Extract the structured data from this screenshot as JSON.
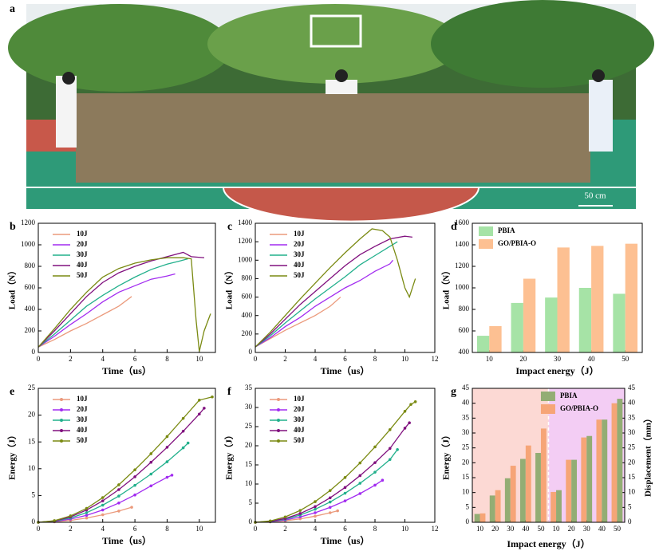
{
  "photo": {
    "label": "a",
    "scale_bar": "50 cm"
  },
  "chart_data": [
    {
      "type": "line",
      "label": "b",
      "x_label": "Time（us）",
      "y_label": "Load（N）",
      "xlim": [
        0,
        11
      ],
      "xticks": [
        0,
        2,
        4,
        6,
        8,
        10
      ],
      "ylim": [
        0,
        1200
      ],
      "yticks": [
        0,
        200,
        400,
        600,
        800,
        1000,
        1200
      ],
      "series": [
        {
          "name": "10J",
          "color": "#eb9a7c",
          "x": [
            0,
            1,
            2,
            3,
            4,
            5,
            5.8
          ],
          "values": [
            50,
            120,
            200,
            270,
            350,
            430,
            520
          ]
        },
        {
          "name": "20J",
          "color": "#a22cf0",
          "x": [
            0,
            1,
            2,
            3,
            4,
            5,
            6,
            7,
            8,
            8.5
          ],
          "values": [
            50,
            150,
            260,
            360,
            470,
            560,
            620,
            680,
            710,
            730
          ]
        },
        {
          "name": "30J",
          "color": "#22b08c",
          "x": [
            0,
            1,
            2,
            3,
            4,
            5,
            6,
            7,
            8,
            8.8,
            9.3
          ],
          "values": [
            50,
            170,
            300,
            430,
            530,
            620,
            700,
            770,
            820,
            850,
            870
          ]
        },
        {
          "name": "40J",
          "color": "#80107e",
          "x": [
            0,
            1,
            2,
            3,
            4,
            5,
            6,
            7,
            8,
            9,
            9.5,
            10.3
          ],
          "values": [
            50,
            200,
            360,
            520,
            650,
            740,
            800,
            850,
            890,
            930,
            890,
            880
          ]
        },
        {
          "name": "50J",
          "color": "#7a8a12",
          "x": [
            0,
            1,
            2,
            3,
            4,
            5,
            6,
            7,
            8,
            9,
            9.5,
            9.8,
            10,
            10.3,
            10.7
          ],
          "values": [
            50,
            220,
            400,
            560,
            700,
            780,
            830,
            860,
            880,
            880,
            870,
            300,
            10,
            200,
            360
          ]
        }
      ]
    },
    {
      "type": "line",
      "label": "c",
      "x_label": "Time（us）",
      "y_label": "Load（N）",
      "xlim": [
        0,
        12
      ],
      "xticks": [
        0,
        2,
        4,
        6,
        8,
        10,
        12
      ],
      "ylim": [
        0,
        1400
      ],
      "yticks": [
        0,
        200,
        400,
        600,
        800,
        1000,
        1200,
        1400
      ],
      "series": [
        {
          "name": "10J",
          "color": "#eb9a7c",
          "x": [
            0,
            1,
            2,
            3,
            4,
            5,
            5.7
          ],
          "values": [
            60,
            150,
            240,
            320,
            400,
            500,
            600
          ]
        },
        {
          "name": "20J",
          "color": "#a22cf0",
          "x": [
            0,
            1,
            2,
            3,
            4,
            5,
            6,
            7,
            8,
            9,
            9.2
          ],
          "values": [
            60,
            160,
            280,
            380,
            500,
            600,
            700,
            780,
            880,
            960,
            1000
          ]
        },
        {
          "name": "30J",
          "color": "#22b08c",
          "x": [
            0,
            1,
            2,
            3,
            4,
            5,
            6,
            7,
            8,
            9,
            9.5
          ],
          "values": [
            60,
            180,
            320,
            450,
            580,
            700,
            820,
            950,
            1050,
            1150,
            1200
          ]
        },
        {
          "name": "40J",
          "color": "#80107e",
          "x": [
            0,
            1,
            2,
            3,
            4,
            5,
            6,
            7,
            8,
            9,
            10,
            10.5
          ],
          "values": [
            60,
            200,
            360,
            520,
            660,
            800,
            940,
            1060,
            1150,
            1230,
            1260,
            1250
          ]
        },
        {
          "name": "50J",
          "color": "#7a8a12",
          "x": [
            0,
            1,
            2,
            3,
            4,
            5,
            6,
            7,
            7.8,
            8.5,
            9,
            9.5,
            10,
            10.3,
            10.7
          ],
          "values": [
            60,
            220,
            400,
            580,
            750,
            920,
            1080,
            1230,
            1340,
            1320,
            1250,
            1000,
            700,
            600,
            800
          ]
        }
      ]
    },
    {
      "type": "bar",
      "label": "d",
      "x_label": "Impact energy（J）",
      "y_label": "Load（N）",
      "categories": [
        10,
        20,
        30,
        40,
        50
      ],
      "ylim": [
        400,
        1600
      ],
      "yticks": [
        400,
        600,
        800,
        1000,
        1200,
        1400,
        1600
      ],
      "series": [
        {
          "name": "PBIA",
          "color": "#a6e3a6",
          "values": [
            555,
            860,
            910,
            1000,
            945
          ]
        },
        {
          "name": "GO/PBIA-O",
          "color": "#fdc092",
          "values": [
            645,
            1085,
            1375,
            1390,
            1410
          ]
        }
      ]
    },
    {
      "type": "line",
      "label": "e",
      "x_label": "Time（us）",
      "y_label": "Energy（J）",
      "markers": true,
      "xlim": [
        0,
        11
      ],
      "xticks": [
        0,
        2,
        4,
        6,
        8,
        10
      ],
      "ylim": [
        0,
        25
      ],
      "yticks": [
        0,
        5,
        10,
        15,
        20,
        25
      ],
      "series": [
        {
          "name": "10J",
          "color": "#eb9a7c",
          "x": [
            0,
            1,
            2,
            3,
            4,
            5,
            5.8
          ],
          "values": [
            0,
            0.1,
            0.35,
            0.8,
            1.4,
            2.1,
            2.8
          ]
        },
        {
          "name": "20J",
          "color": "#a22cf0",
          "x": [
            0,
            1,
            2,
            3,
            4,
            5,
            6,
            7,
            8,
            8.3
          ],
          "values": [
            0,
            0.15,
            0.6,
            1.3,
            2.3,
            3.6,
            5.1,
            6.8,
            8.4,
            8.8
          ]
        },
        {
          "name": "30J",
          "color": "#22b08c",
          "x": [
            0,
            1,
            2,
            3,
            4,
            5,
            6,
            7,
            8,
            9,
            9.3
          ],
          "values": [
            0,
            0.2,
            0.8,
            1.8,
            3.2,
            4.9,
            6.9,
            9.0,
            11.3,
            13.9,
            14.8
          ]
        },
        {
          "name": "40J",
          "color": "#80107e",
          "x": [
            0,
            1,
            2,
            3,
            4,
            5,
            6,
            7,
            8,
            9,
            10,
            10.3
          ],
          "values": [
            0,
            0.25,
            1.0,
            2.3,
            4.0,
            6.1,
            8.5,
            11.2,
            14.0,
            17.0,
            20.2,
            21.3
          ]
        },
        {
          "name": "50J",
          "color": "#7a8a12",
          "x": [
            0,
            1,
            2,
            3,
            4,
            5,
            6,
            7,
            8,
            9,
            10,
            10.8
          ],
          "values": [
            0,
            0.3,
            1.2,
            2.6,
            4.6,
            7.0,
            9.8,
            12.8,
            16.0,
            19.4,
            22.8,
            23.4
          ]
        }
      ]
    },
    {
      "type": "line",
      "label": "f",
      "x_label": "Time（us）",
      "y_label": "Energy（J）",
      "markers": true,
      "xlim": [
        0,
        12
      ],
      "xticks": [
        0,
        2,
        4,
        6,
        8,
        10,
        12
      ],
      "ylim": [
        0,
        35
      ],
      "yticks": [
        0,
        5,
        10,
        15,
        20,
        25,
        30,
        35
      ],
      "series": [
        {
          "name": "10J",
          "color": "#eb9a7c",
          "x": [
            0,
            1,
            2,
            3,
            4,
            5,
            5.5
          ],
          "values": [
            0,
            0.1,
            0.4,
            0.9,
            1.6,
            2.5,
            3.0
          ]
        },
        {
          "name": "20J",
          "color": "#a22cf0",
          "x": [
            0,
            1,
            2,
            3,
            4,
            5,
            6,
            7,
            8,
            8.5
          ],
          "values": [
            0,
            0.15,
            0.6,
            1.4,
            2.5,
            3.9,
            5.6,
            7.5,
            9.7,
            11.0
          ]
        },
        {
          "name": "30J",
          "color": "#22b08c",
          "x": [
            0,
            1,
            2,
            3,
            4,
            5,
            6,
            7,
            8,
            9,
            9.5
          ],
          "values": [
            0,
            0.2,
            0.8,
            1.9,
            3.4,
            5.3,
            7.6,
            10.2,
            13.1,
            16.4,
            19.0
          ]
        },
        {
          "name": "40J",
          "color": "#80107e",
          "x": [
            0,
            1,
            2,
            3,
            4,
            5,
            6,
            7,
            8,
            9,
            10,
            10.3
          ],
          "values": [
            0,
            0.25,
            1.0,
            2.3,
            4.1,
            6.4,
            9.1,
            12.2,
            15.6,
            19.3,
            24.6,
            26.0
          ]
        },
        {
          "name": "50J",
          "color": "#7a8a12",
          "x": [
            0,
            1,
            2,
            3,
            4,
            5,
            6,
            7,
            8,
            9,
            10,
            10.4,
            10.7
          ],
          "values": [
            0,
            0.35,
            1.4,
            3.1,
            5.4,
            8.3,
            11.7,
            15.5,
            19.7,
            24.2,
            29.0,
            30.8,
            31.5
          ]
        }
      ]
    },
    {
      "type": "bar",
      "label": "g",
      "x_label": "Impact energy（J）",
      "y_label": "Energy（J）",
      "y2_label": "Displacement（mm）",
      "categories": [
        10,
        20,
        30,
        40,
        50,
        10,
        20,
        30,
        40,
        50
      ],
      "ylim": [
        0,
        45
      ],
      "yticks": [
        0,
        5,
        10,
        15,
        20,
        25,
        30,
        35,
        40,
        45
      ],
      "y2lim": [
        0,
        45
      ],
      "y2ticks": [
        0,
        5,
        10,
        15,
        20,
        25,
        30,
        35,
        40,
        45
      ],
      "background_colors": [
        "#fcd9d4",
        "#f3cdf4"
      ],
      "series": [
        {
          "name": "PBIA",
          "color": "#93ad74",
          "values": [
            2.8,
            9.0,
            14.8,
            21.3,
            23.3,
            null,
            null,
            null,
            null,
            null
          ]
        },
        {
          "name": "GO/PBIA-O",
          "color": "#f6a577",
          "values": [
            3.0,
            10.8,
            19.0,
            25.8,
            31.5,
            null,
            null,
            null,
            null,
            null
          ]
        },
        {
          "color": "#f6a577",
          "axis": "y2",
          "values": [
            null,
            null,
            null,
            null,
            null,
            10.2,
            21.0,
            28.5,
            34.5,
            40.0
          ]
        },
        {
          "color": "#93ad74",
          "axis": "y2",
          "values": [
            null,
            null,
            null,
            null,
            null,
            10.8,
            21.0,
            29.0,
            34.5,
            41.5
          ]
        }
      ]
    }
  ]
}
